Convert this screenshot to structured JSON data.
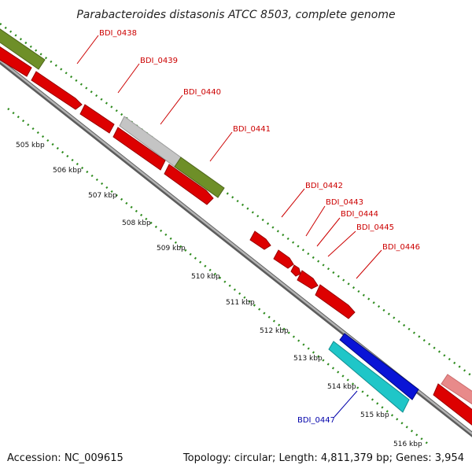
{
  "title": "Parabacteroides distasonis ATCC 8503, complete genome",
  "footer": {
    "accession": "Accession: NC_009615",
    "summary": "Topology: circular; Length: 4,811,379 bp; Genes: 3,954"
  },
  "colors": {
    "backbone": "#8a8a8a",
    "tick": "#2e8b1e",
    "forward_label": "#cc0000",
    "reverse_label": "#0000aa",
    "gene_red": "#dd0000",
    "gene_olive": "#6e8f28",
    "gene_gray": "#c4c4c4",
    "gene_blue": "#0a14d6",
    "gene_cyan": "#1fc6c8",
    "gene_pink": "#e88a8a"
  },
  "kbp_labels": [
    "505 kbp",
    "506 kbp",
    "507 kbp",
    "508 kbp",
    "509 kbp",
    "510 kbp",
    "511 kbp",
    "512 kbp",
    "513 kbp",
    "514 kbp",
    "515 kbp",
    "516 kbp"
  ],
  "gene_labels": {
    "g0438": "BDI_0438",
    "g0439": "BDI_0439",
    "g0440": "BDI_0440",
    "g0441": "BDI_0441",
    "g0442": "BDI_0442",
    "g0443": "BDI_0443",
    "g0444": "BDI_0444",
    "g0445": "BDI_0445",
    "g0446": "BDI_0446",
    "g0447": "BDI_0447"
  }
}
